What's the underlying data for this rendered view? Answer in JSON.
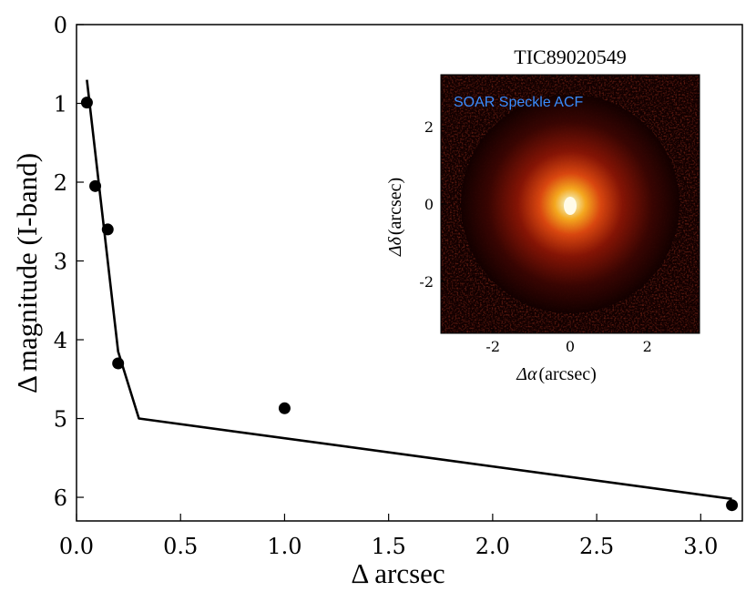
{
  "chart_data": [
    {
      "type": "scatter",
      "xlabel_symbol": "Δ",
      "xlabel_text": "arcsec",
      "ylabel_symbol": "Δ",
      "ylabel_text": "magnitude  (I-band)",
      "xlim": [
        0.0,
        3.2
      ],
      "ylim": [
        6.3,
        0
      ],
      "y_inverted": true,
      "grid": false,
      "x_ticks": [
        "0.0",
        "0.5",
        "1.0",
        "1.5",
        "2.0",
        "2.5",
        "3.0"
      ],
      "y_ticks": [
        "0",
        "1",
        "2",
        "3",
        "4",
        "5",
        "6"
      ],
      "series": [
        {
          "kind": "points",
          "x": [
            0.05,
            0.09,
            0.15,
            0.2,
            1.0,
            3.15
          ],
          "y": [
            0.99,
            2.05,
            2.6,
            4.3,
            4.87,
            6.1
          ]
        },
        {
          "kind": "line",
          "x": [
            0.05,
            0.2,
            0.3,
            3.15
          ],
          "y": [
            0.7,
            4.15,
            5.0,
            6.02
          ]
        }
      ]
    },
    {
      "type": "heatmap",
      "title": "TIC89020549",
      "annotation": "SOAR Speckle ACF",
      "xlabel_symbol": "Δα",
      "xlabel_text": "(arcsec)",
      "ylabel_symbol": "Δδ",
      "ylabel_text": "(arcsec)",
      "xlim": [
        -3.35,
        3.35
      ],
      "ylim": [
        -3.35,
        3.35
      ],
      "x_ticks": [
        "-2",
        "0",
        "2"
      ],
      "y_ticks": [
        "2",
        "0",
        "-2"
      ],
      "colormap": "hot",
      "peak_center": [
        0,
        0
      ]
    }
  ],
  "colors": {
    "axes": "#000000",
    "markers": "#000000",
    "inset_tag": "#3a8dff",
    "inset_bg": "#120000"
  }
}
